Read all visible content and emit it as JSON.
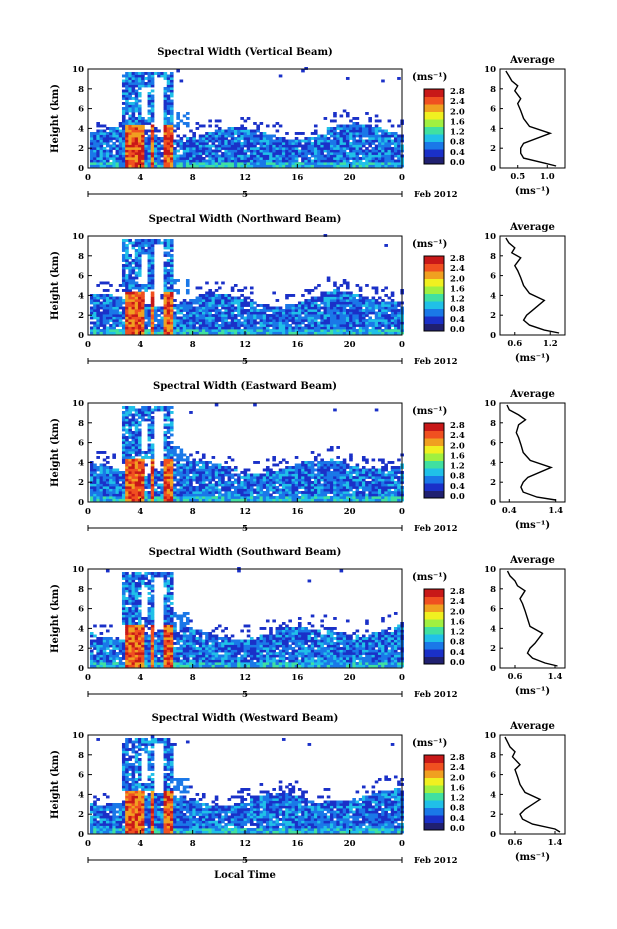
{
  "chart_data": [
    {
      "type": "heatmap",
      "title": "Spectral Width (Vertical Beam)",
      "ylabel": "Height (km)",
      "xlabel": "",
      "x_ticks": [
        "0",
        "4",
        "8",
        "12",
        "16",
        "20",
        "0"
      ],
      "day_label": "5",
      "date_label": "Feb 2012",
      "y_ticks": [
        "0",
        "2",
        "4",
        "6",
        "8",
        "10"
      ],
      "xlim": [
        0,
        24
      ],
      "ylim": [
        0,
        10
      ],
      "colorbar": {
        "unit": "(ms⁻¹)",
        "ticks": [
          "0.0",
          "0.4",
          "0.8",
          "1.2",
          "1.6",
          "2.0",
          "2.4",
          "2.8"
        ]
      },
      "profile": {
        "title": "Average",
        "xlabel": "(ms⁻¹)",
        "x_ticks": [
          "0.5",
          "1.0"
        ],
        "xlim": [
          0.2,
          1.3
        ],
        "y_ticks": [
          "0",
          "2",
          "4",
          "6",
          "8",
          "10"
        ],
        "x": [
          1.15,
          0.95,
          0.6,
          0.55,
          0.55,
          0.6,
          1.05,
          0.7,
          0.6,
          0.55,
          0.5,
          0.55,
          0.45,
          0.5,
          0.4,
          0.35,
          0.3
        ],
        "y": [
          0.2,
          0.5,
          1.0,
          1.5,
          2.0,
          2.5,
          3.5,
          4.2,
          5.0,
          5.8,
          6.5,
          7.0,
          7.8,
          8.3,
          8.8,
          9.3,
          9.8
        ]
      }
    },
    {
      "type": "heatmap",
      "title": "Spectral Width (Northward Beam)",
      "ylabel": "Height (km)",
      "xlabel": "",
      "x_ticks": [
        "0",
        "4",
        "8",
        "12",
        "16",
        "20",
        "0"
      ],
      "day_label": "5",
      "date_label": "Feb 2012",
      "y_ticks": [
        "0",
        "2",
        "4",
        "6",
        "8",
        "10"
      ],
      "xlim": [
        0,
        24
      ],
      "ylim": [
        0,
        10
      ],
      "colorbar": {
        "unit": "(ms⁻¹)",
        "ticks": [
          "0.0",
          "0.4",
          "0.8",
          "1.2",
          "1.6",
          "2.0",
          "2.4",
          "2.8"
        ]
      },
      "profile": {
        "title": "Average",
        "xlabel": "(ms⁻¹)",
        "x_ticks": [
          "0.6",
          "1.2"
        ],
        "xlim": [
          0.35,
          1.45
        ],
        "y_ticks": [
          "0",
          "2",
          "4",
          "6",
          "8",
          "10"
        ],
        "x": [
          1.35,
          1.1,
          0.85,
          0.75,
          0.8,
          0.9,
          1.1,
          0.85,
          0.75,
          0.7,
          0.65,
          0.6,
          0.7,
          0.55,
          0.6,
          0.5,
          0.45
        ],
        "y": [
          0.2,
          0.5,
          1.0,
          1.5,
          2.0,
          2.5,
          3.5,
          4.2,
          5.0,
          5.8,
          6.5,
          7.0,
          7.8,
          8.3,
          8.8,
          9.3,
          9.8
        ]
      }
    },
    {
      "type": "heatmap",
      "title": "Spectral Width (Eastward Beam)",
      "ylabel": "Height (km)",
      "xlabel": "",
      "x_ticks": [
        "0",
        "4",
        "8",
        "12",
        "16",
        "20",
        "0"
      ],
      "day_label": "5",
      "date_label": "Feb 2012",
      "y_ticks": [
        "0",
        "2",
        "4",
        "6",
        "8",
        "10"
      ],
      "xlim": [
        0,
        24
      ],
      "ylim": [
        0,
        10
      ],
      "colorbar": {
        "unit": "(ms⁻¹)",
        "ticks": [
          "0.0",
          "0.4",
          "0.8",
          "1.2",
          "1.6",
          "2.0",
          "2.4",
          "2.8"
        ]
      },
      "profile": {
        "title": "Average",
        "xlabel": "(ms⁻¹)",
        "x_ticks": [
          "0.4",
          "1.4"
        ],
        "xlim": [
          0.2,
          1.6
        ],
        "y_ticks": [
          "0",
          "2",
          "4",
          "6",
          "8",
          "10"
        ],
        "x": [
          1.4,
          1.0,
          0.7,
          0.65,
          0.7,
          0.8,
          1.3,
          0.85,
          0.7,
          0.65,
          0.6,
          0.55,
          0.6,
          0.75,
          0.6,
          0.4,
          0.35
        ],
        "y": [
          0.2,
          0.5,
          1.0,
          1.5,
          2.0,
          2.5,
          3.5,
          4.2,
          5.0,
          5.8,
          6.5,
          7.0,
          7.8,
          8.3,
          8.8,
          9.3,
          9.8
        ]
      }
    },
    {
      "type": "heatmap",
      "title": "Spectral Width (Southward Beam)",
      "ylabel": "Height (km)",
      "xlabel": "",
      "x_ticks": [
        "0",
        "4",
        "8",
        "12",
        "16",
        "20",
        "0"
      ],
      "day_label": "5",
      "date_label": "Feb 2012",
      "y_ticks": [
        "0",
        "2",
        "4",
        "6",
        "8",
        "10"
      ],
      "xlim": [
        0,
        24
      ],
      "ylim": [
        0,
        10
      ],
      "colorbar": {
        "unit": "(ms⁻¹)",
        "ticks": [
          "0.0",
          "0.4",
          "0.8",
          "1.2",
          "1.6",
          "2.0",
          "2.4",
          "2.8"
        ]
      },
      "profile": {
        "title": "Average",
        "xlabel": "(ms⁻¹)",
        "x_ticks": [
          "0.6",
          "1.4"
        ],
        "xlim": [
          0.3,
          1.6
        ],
        "y_ticks": [
          "0",
          "2",
          "4",
          "6",
          "8",
          "10"
        ],
        "x": [
          1.45,
          1.2,
          0.95,
          0.85,
          0.9,
          1.0,
          1.15,
          0.9,
          0.85,
          0.8,
          0.75,
          0.7,
          0.8,
          0.65,
          0.6,
          0.5,
          0.45
        ],
        "y": [
          0.2,
          0.5,
          1.0,
          1.5,
          2.0,
          2.5,
          3.5,
          4.2,
          5.0,
          5.8,
          6.5,
          7.0,
          7.8,
          8.3,
          8.8,
          9.3,
          9.8
        ]
      }
    },
    {
      "type": "heatmap",
      "title": "Spectral Width (Westward Beam)",
      "ylabel": "Height (km)",
      "xlabel": "Local Time",
      "x_ticks": [
        "0",
        "4",
        "8",
        "12",
        "16",
        "20",
        "0"
      ],
      "day_label": "5",
      "date_label": "Feb 2012",
      "y_ticks": [
        "0",
        "2",
        "4",
        "6",
        "8",
        "10"
      ],
      "xlim": [
        0,
        24
      ],
      "ylim": [
        0,
        10
      ],
      "colorbar": {
        "unit": "(ms⁻¹)",
        "ticks": [
          "0.0",
          "0.4",
          "0.8",
          "1.2",
          "1.6",
          "2.0",
          "2.4",
          "2.8"
        ]
      },
      "profile": {
        "title": "Average",
        "xlabel": "(ms⁻¹)",
        "x_ticks": [
          "0.6",
          "1.4"
        ],
        "xlim": [
          0.3,
          1.6
        ],
        "y_ticks": [
          "0",
          "2",
          "4",
          "6",
          "8",
          "10"
        ],
        "x": [
          1.5,
          1.4,
          0.95,
          0.75,
          0.7,
          0.8,
          1.1,
          0.8,
          0.7,
          0.65,
          0.6,
          0.7,
          0.55,
          0.6,
          0.5,
          0.45,
          0.4
        ],
        "y": [
          0.2,
          0.5,
          1.0,
          1.5,
          2.0,
          2.5,
          3.5,
          4.2,
          5.0,
          5.8,
          6.5,
          7.0,
          7.8,
          8.3,
          8.8,
          9.3,
          9.8
        ]
      }
    }
  ],
  "colors": {
    "colormap": [
      "#202070",
      "#1a30c8",
      "#1a78e8",
      "#20c0e8",
      "#40e0a0",
      "#a0f040",
      "#f0f020",
      "#f0a020",
      "#f05020",
      "#c81818"
    ]
  }
}
